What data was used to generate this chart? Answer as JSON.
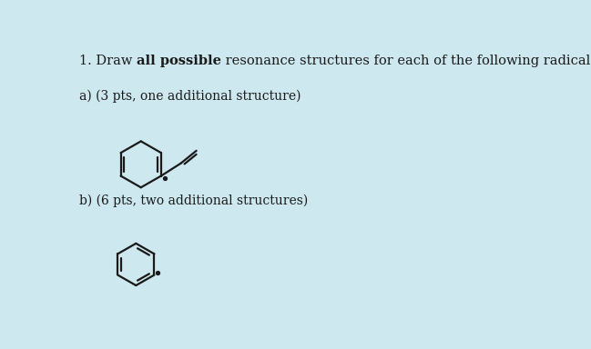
{
  "bg_color": "#cee8ef",
  "text_color": "#1a1a1a",
  "line_color": "#1a1a1a",
  "font_size_main": 10.5,
  "font_size_label": 10.0,
  "title_normal1": "1. Draw ",
  "title_bold": "all possible",
  "title_normal2": " resonance structures for each of the following radicals:",
  "label_a": "a) (3 pts, one additional structure)",
  "label_b": "b) (6 pts, two additional structures)"
}
